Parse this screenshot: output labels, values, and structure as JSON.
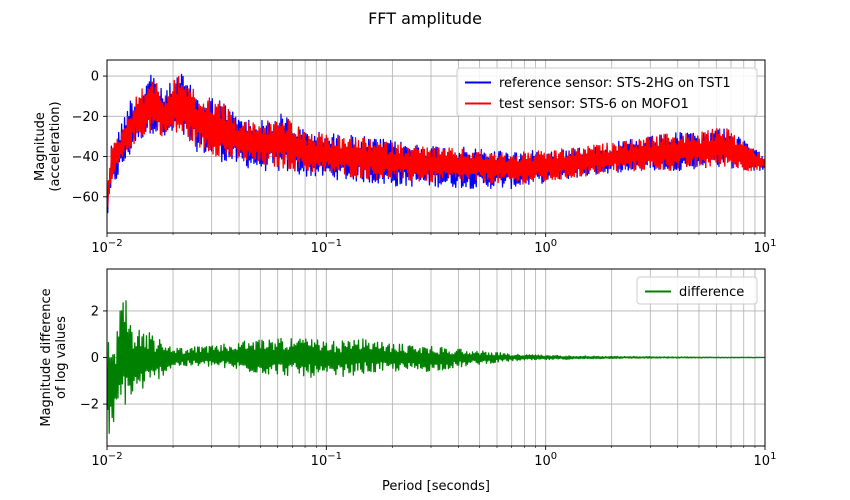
{
  "figure": {
    "title": "FFT amplitude"
  },
  "chart_data": [
    {
      "type": "line",
      "xscale": "log",
      "xlim": [
        0.01,
        10
      ],
      "ylim": [
        -78,
        8
      ],
      "xlabel": "",
      "ylabel_lines": [
        "Magnitude",
        "(acceleration)"
      ],
      "xticks": [
        {
          "value": 0.01,
          "base": "10",
          "exp": "−2"
        },
        {
          "value": 0.1,
          "base": "10",
          "exp": "−1"
        },
        {
          "value": 1,
          "base": "10",
          "exp": "0"
        },
        {
          "value": 10,
          "base": "10",
          "exp": "1"
        }
      ],
      "yticks": [
        {
          "value": 0,
          "label": "0"
        },
        {
          "value": -20,
          "label": "−20"
        },
        {
          "value": -40,
          "label": "−40"
        },
        {
          "value": -60,
          "label": "−60"
        }
      ],
      "grid": true,
      "legend": "top-right",
      "series": [
        {
          "name": "reference sensor: STS-2HG on TST1",
          "color": "#0000ff",
          "envelope": [
            {
              "x": 0.01,
              "hi": -55,
              "lo": -72
            },
            {
              "x": 0.0105,
              "hi": -32,
              "lo": -58
            },
            {
              "x": 0.0115,
              "hi": -25,
              "lo": -48
            },
            {
              "x": 0.0125,
              "hi": -12,
              "lo": -42
            },
            {
              "x": 0.0135,
              "hi": -8,
              "lo": -34
            },
            {
              "x": 0.015,
              "hi": -2,
              "lo": -30
            },
            {
              "x": 0.016,
              "hi": 4,
              "lo": -28
            },
            {
              "x": 0.018,
              "hi": -8,
              "lo": -32
            },
            {
              "x": 0.0215,
              "hi": 3,
              "lo": -30
            },
            {
              "x": 0.026,
              "hi": -10,
              "lo": -38
            },
            {
              "x": 0.032,
              "hi": -10,
              "lo": -42
            },
            {
              "x": 0.04,
              "hi": -20,
              "lo": -45
            },
            {
              "x": 0.05,
              "hi": -22,
              "lo": -47
            },
            {
              "x": 0.065,
              "hi": -18,
              "lo": -48
            },
            {
              "x": 0.08,
              "hi": -27,
              "lo": -50
            },
            {
              "x": 0.1,
              "hi": -28,
              "lo": -51
            },
            {
              "x": 0.15,
              "hi": -30,
              "lo": -53
            },
            {
              "x": 0.2,
              "hi": -32,
              "lo": -55
            },
            {
              "x": 0.3,
              "hi": -34,
              "lo": -55
            },
            {
              "x": 0.5,
              "hi": -36,
              "lo": -56
            },
            {
              "x": 0.7,
              "hi": -37,
              "lo": -56
            },
            {
              "x": 1.0,
              "hi": -37,
              "lo": -53
            },
            {
              "x": 1.5,
              "hi": -35,
              "lo": -50
            },
            {
              "x": 2.0,
              "hi": -33,
              "lo": -48
            },
            {
              "x": 3.0,
              "hi": -30,
              "lo": -47
            },
            {
              "x": 4.0,
              "hi": -28,
              "lo": -47
            },
            {
              "x": 5.0,
              "hi": -28,
              "lo": -46
            },
            {
              "x": 6.5,
              "hi": -25,
              "lo": -45
            },
            {
              "x": 8.0,
              "hi": -32,
              "lo": -47
            },
            {
              "x": 10.0,
              "hi": -40,
              "lo": -47
            }
          ]
        },
        {
          "name": "test sensor: STS-6 on MOFO1",
          "color": "#ff0000",
          "envelope": [
            {
              "x": 0.01,
              "hi": -50,
              "lo": -72
            },
            {
              "x": 0.0105,
              "hi": -35,
              "lo": -55
            },
            {
              "x": 0.0115,
              "hi": -28,
              "lo": -44
            },
            {
              "x": 0.0125,
              "hi": -18,
              "lo": -38
            },
            {
              "x": 0.0135,
              "hi": -10,
              "lo": -33
            },
            {
              "x": 0.015,
              "hi": -4,
              "lo": -30
            },
            {
              "x": 0.016,
              "hi": 2,
              "lo": -27
            },
            {
              "x": 0.018,
              "hi": -10,
              "lo": -30
            },
            {
              "x": 0.0215,
              "hi": 3,
              "lo": -30
            },
            {
              "x": 0.026,
              "hi": -10,
              "lo": -36
            },
            {
              "x": 0.032,
              "hi": -10,
              "lo": -40
            },
            {
              "x": 0.04,
              "hi": -22,
              "lo": -43
            },
            {
              "x": 0.05,
              "hi": -23,
              "lo": -45
            },
            {
              "x": 0.065,
              "hi": -20,
              "lo": -46
            },
            {
              "x": 0.08,
              "hi": -28,
              "lo": -48
            },
            {
              "x": 0.1,
              "hi": -29,
              "lo": -49
            },
            {
              "x": 0.15,
              "hi": -31,
              "lo": -51
            },
            {
              "x": 0.2,
              "hi": -33,
              "lo": -52
            },
            {
              "x": 0.3,
              "hi": -35,
              "lo": -53
            },
            {
              "x": 0.5,
              "hi": -37,
              "lo": -53
            },
            {
              "x": 0.7,
              "hi": -38,
              "lo": -54
            },
            {
              "x": 1.0,
              "hi": -37,
              "lo": -53
            },
            {
              "x": 1.5,
              "hi": -35,
              "lo": -50
            },
            {
              "x": 2.0,
              "hi": -33,
              "lo": -48
            },
            {
              "x": 3.0,
              "hi": -30,
              "lo": -47
            },
            {
              "x": 4.0,
              "hi": -28,
              "lo": -47
            },
            {
              "x": 5.0,
              "hi": -28,
              "lo": -46
            },
            {
              "x": 6.5,
              "hi": -25,
              "lo": -45
            },
            {
              "x": 8.0,
              "hi": -32,
              "lo": -47
            },
            {
              "x": 10.0,
              "hi": -40,
              "lo": -47
            }
          ]
        }
      ]
    },
    {
      "type": "line",
      "xscale": "log",
      "xlim": [
        0.01,
        10
      ],
      "ylim": [
        -3.8,
        3.8
      ],
      "xlabel": "Period [seconds]",
      "ylabel_lines": [
        "Magnitude difference",
        "of log values"
      ],
      "xticks": [
        {
          "value": 0.01,
          "base": "10",
          "exp": "−2"
        },
        {
          "value": 0.1,
          "base": "10",
          "exp": "−1"
        },
        {
          "value": 1,
          "base": "10",
          "exp": "0"
        },
        {
          "value": 10,
          "base": "10",
          "exp": "1"
        }
      ],
      "yticks": [
        {
          "value": 2,
          "label": "2"
        },
        {
          "value": 0,
          "label": "0"
        },
        {
          "value": -2,
          "label": "−2"
        }
      ],
      "grid": true,
      "legend": "top-right",
      "series": [
        {
          "name": "difference",
          "color": "#008000",
          "envelope": [
            {
              "x": 0.01,
              "hi": 0.6,
              "lo": -3.5
            },
            {
              "x": 0.011,
              "hi": 1.0,
              "lo": -3.0
            },
            {
              "x": 0.0118,
              "hi": 3.4,
              "lo": -2.2
            },
            {
              "x": 0.013,
              "hi": 1.2,
              "lo": -1.8
            },
            {
              "x": 0.014,
              "hi": 1.4,
              "lo": -1.5
            },
            {
              "x": 0.016,
              "hi": 1.0,
              "lo": -1.2
            },
            {
              "x": 0.02,
              "hi": 0.4,
              "lo": -0.4
            },
            {
              "x": 0.03,
              "hi": 0.5,
              "lo": -0.4
            },
            {
              "x": 0.05,
              "hi": 0.8,
              "lo": -0.7
            },
            {
              "x": 0.07,
              "hi": 0.9,
              "lo": -0.8
            },
            {
              "x": 0.1,
              "hi": 0.7,
              "lo": -0.9
            },
            {
              "x": 0.15,
              "hi": 0.8,
              "lo": -0.7
            },
            {
              "x": 0.2,
              "hi": 0.6,
              "lo": -0.6
            },
            {
              "x": 0.3,
              "hi": 0.5,
              "lo": -0.6
            },
            {
              "x": 0.5,
              "hi": 0.3,
              "lo": -0.3
            },
            {
              "x": 0.7,
              "hi": 0.15,
              "lo": -0.15
            },
            {
              "x": 1.0,
              "hi": 0.1,
              "lo": -0.1
            },
            {
              "x": 2.0,
              "hi": 0.05,
              "lo": -0.04
            },
            {
              "x": 5.0,
              "hi": 0.02,
              "lo": -0.02
            },
            {
              "x": 10.0,
              "hi": 0.01,
              "lo": -0.01
            }
          ]
        }
      ]
    }
  ]
}
